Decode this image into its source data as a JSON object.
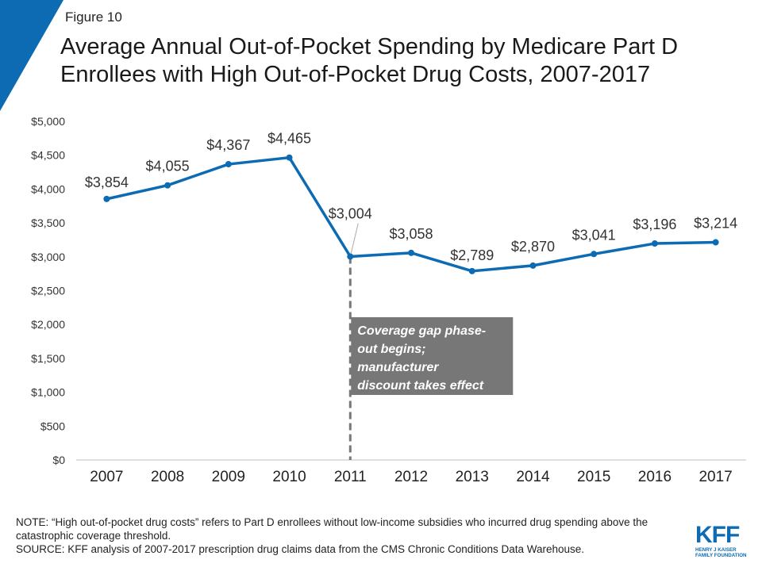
{
  "figure_label": "Figure 10",
  "title_line1": "Average Annual Out-of-Pocket Spending by Medicare Part D",
  "title_line2": "Enrollees with High Out-of-Pocket Drug Costs, 2007-2017",
  "colors": {
    "line": "#0d6bb3",
    "corner": "#0d6bb3",
    "annotation_bg": "#777777",
    "dashed_line": "#777777"
  },
  "chart_data": {
    "type": "line",
    "title": "Average Annual Out-of-Pocket Spending by Medicare Part D Enrollees with High Out-of-Pocket Drug Costs, 2007-2017",
    "categories": [
      "2007",
      "2008",
      "2009",
      "2010",
      "2011",
      "2012",
      "2013",
      "2014",
      "2015",
      "2016",
      "2017"
    ],
    "values": [
      3854,
      4055,
      4367,
      4465,
      3004,
      3058,
      2789,
      2870,
      3041,
      3196,
      3214
    ],
    "data_labels": [
      "$3,854",
      "$4,055",
      "$4,367",
      "$4,465",
      "$3,004",
      "$3,058",
      "$2,789",
      "$2,870",
      "$3,041",
      "$3,196",
      "$3,214"
    ],
    "y_ticks": [
      "$0",
      "$500",
      "$1,000",
      "$1,500",
      "$2,000",
      "$2,500",
      "$3,000",
      "$3,500",
      "$4,000",
      "$4,500",
      "$5,000"
    ],
    "ylim": [
      0,
      5000
    ],
    "xlabel": "",
    "ylabel": "",
    "grid": false,
    "annotation": {
      "category": "2011",
      "lines": [
        "Coverage gap phase-",
        "out begins;",
        "manufacturer",
        "discount takes effect"
      ]
    }
  },
  "note": "NOTE: “High out-of-pocket drug costs” refers to Part D enrollees without low-income subsidies who incurred drug spending above the catastrophic coverage threshold.",
  "source": "SOURCE: KFF analysis of 2007-2017 prescription drug claims data from the CMS Chronic Conditions Data Warehouse.",
  "logo": {
    "text": "KFF",
    "sub_line1": "HENRY J KAISER",
    "sub_line2": "FAMILY FOUNDATION"
  }
}
